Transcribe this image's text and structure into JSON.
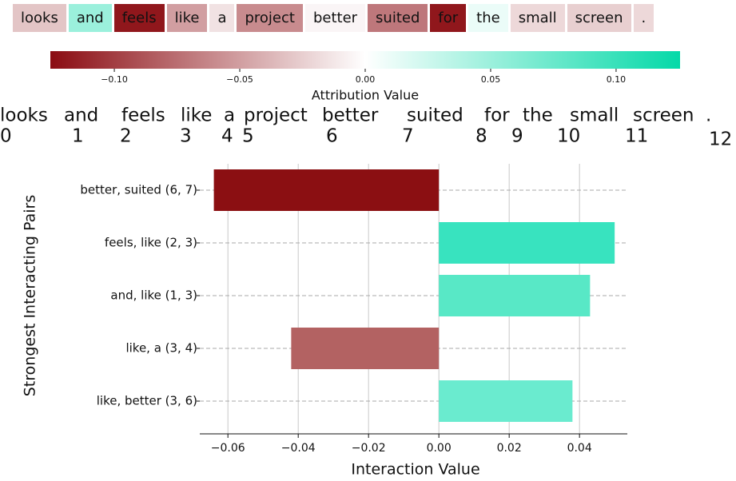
{
  "chart_data": [
    {
      "type": "token-attribution",
      "tokens": [
        "looks",
        "and",
        "feels",
        "like",
        "a",
        "project",
        "better",
        "suited",
        "for",
        "the",
        "small",
        "screen",
        "."
      ],
      "values": [
        -0.03,
        0.05,
        -0.12,
        -0.05,
        -0.015,
        -0.06,
        -0.005,
        -0.07,
        -0.12,
        0.01,
        -0.02,
        -0.025,
        -0.02
      ],
      "indices": [
        0,
        1,
        2,
        3,
        4,
        5,
        6,
        7,
        8,
        9,
        10,
        11,
        12
      ],
      "colorbar_label": "Attribution Value",
      "colors": [
        "#8b0c12",
        "#ffffff",
        "#05d9a8"
      ],
      "xlim": [
        -0.1255,
        0.1255
      ],
      "xticks": [
        {
          "value": -0.1,
          "label": "−0.10"
        },
        {
          "value": -0.05,
          "label": "−0.05"
        },
        {
          "value": 0,
          "label": "0.00"
        },
        0.05,
        {
          "value": 0.1,
          "label": "0.10"
        }
      ]
    },
    {
      "type": "barh",
      "categories": [
        "better, suited (6, 7)",
        "feels, like (2, 3)",
        "and, like (1, 3)",
        "like, a (3, 4)",
        "like, better (3, 6)"
      ],
      "values": [
        -0.064,
        0.05,
        0.043,
        -0.042,
        0.038
      ],
      "colors": [
        "#8b0f12",
        "#38e3bf",
        "#58e8c6",
        "#b36262",
        "#6aebcf"
      ],
      "xlabel": "Interaction Value",
      "ylabel": "Strongest Interacting Pairs",
      "xlim": [
        -0.068,
        0.0536
      ],
      "xticks": [
        {
          "value": -0.06,
          "label": "−0.06"
        },
        {
          "value": -0.04,
          "label": "−0.04"
        },
        {
          "value": -0.02,
          "label": "−0.02"
        },
        {
          "value": 0,
          "label": "0.00"
        },
        0.02,
        0.04
      ],
      "grid": true
    }
  ]
}
